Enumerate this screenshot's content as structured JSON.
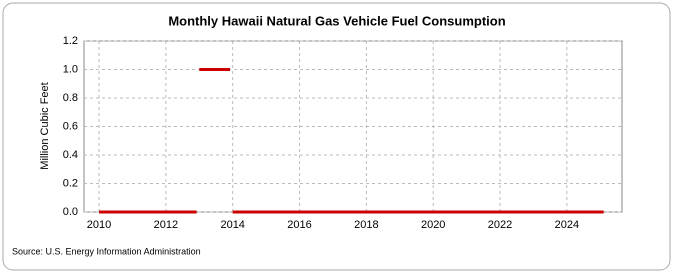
{
  "chart_data": {
    "type": "line",
    "title": "Monthly Hawaii Natural Gas Vehicle Fuel Consumption",
    "y_label": "Million Cubic Feet",
    "source": "Source: U.S. Energy Information Administration",
    "x": [
      2010,
      2012.92,
      2012.96,
      2013,
      2013.92,
      2013.96,
      2014,
      2025.1
    ],
    "series": [
      {
        "color": "#cc0000",
        "values": [
          0,
          0,
          null,
          1,
          1,
          null,
          0,
          0
        ]
      }
    ],
    "xlim": [
      2009.55,
      2025.65
    ],
    "xticks": [
      2010,
      2012,
      2014,
      2016,
      2018,
      2020,
      2022,
      2024
    ],
    "ylim": [
      0,
      1.2
    ],
    "yticks": [
      {
        "value": 0,
        "label": "0.0"
      },
      0.2,
      0.4,
      0.6,
      0.8,
      {
        "value": 1,
        "label": "1.0"
      },
      1.2
    ],
    "grid": true
  }
}
